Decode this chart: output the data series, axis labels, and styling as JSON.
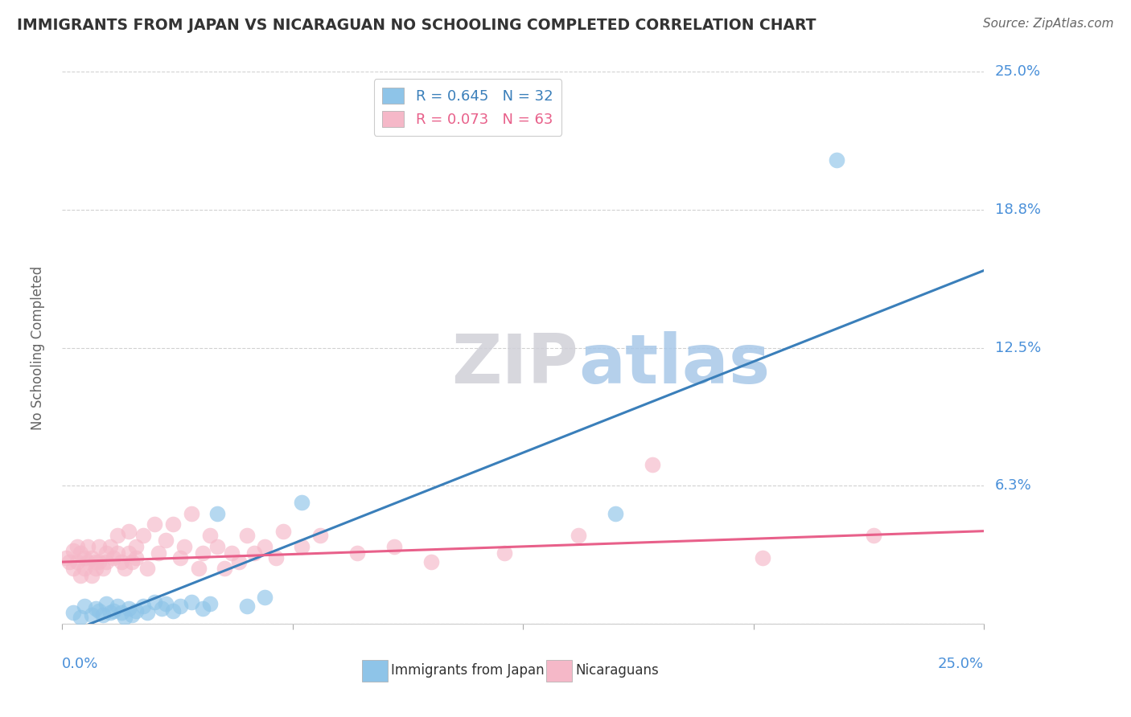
{
  "title": "IMMIGRANTS FROM JAPAN VS NICARAGUAN NO SCHOOLING COMPLETED CORRELATION CHART",
  "source": "Source: ZipAtlas.com",
  "ylabel": "No Schooling Completed",
  "watermark_zip": "ZIP",
  "watermark_atlas": "atlas",
  "xlim": [
    0.0,
    0.25
  ],
  "ylim": [
    0.0,
    0.25
  ],
  "yticks": [
    0.0,
    0.0625,
    0.125,
    0.1875,
    0.25
  ],
  "ytick_labels": [
    "",
    "6.3%",
    "12.5%",
    "18.8%",
    "25.0%"
  ],
  "legend_R_japan": "R = 0.645",
  "legend_N_japan": "N = 32",
  "legend_R_nicaragua": "R = 0.073",
  "legend_N_nicaragua": "N = 63",
  "legend_label_japan": "Immigrants from Japan",
  "legend_label_nicaragua": "Nicaraguans",
  "color_japan": "#8ec4e8",
  "color_nicaragua": "#f5b8c8",
  "color_japan_line": "#3a7fba",
  "color_nicaragua_line": "#e8608a",
  "japan_points_x": [
    0.003,
    0.005,
    0.006,
    0.008,
    0.009,
    0.01,
    0.011,
    0.012,
    0.013,
    0.014,
    0.015,
    0.016,
    0.017,
    0.018,
    0.019,
    0.02,
    0.022,
    0.023,
    0.025,
    0.027,
    0.028,
    0.03,
    0.032,
    0.035,
    0.038,
    0.04,
    0.042,
    0.05,
    0.055,
    0.065,
    0.15,
    0.21
  ],
  "japan_points_y": [
    0.005,
    0.003,
    0.008,
    0.004,
    0.007,
    0.006,
    0.004,
    0.009,
    0.005,
    0.006,
    0.008,
    0.005,
    0.003,
    0.007,
    0.004,
    0.006,
    0.008,
    0.005,
    0.01,
    0.007,
    0.009,
    0.006,
    0.008,
    0.01,
    0.007,
    0.009,
    0.05,
    0.008,
    0.012,
    0.055,
    0.05,
    0.21
  ],
  "nicaragua_points_x": [
    0.001,
    0.002,
    0.003,
    0.003,
    0.004,
    0.004,
    0.005,
    0.005,
    0.006,
    0.006,
    0.007,
    0.007,
    0.008,
    0.008,
    0.009,
    0.009,
    0.01,
    0.01,
    0.011,
    0.012,
    0.012,
    0.013,
    0.014,
    0.015,
    0.015,
    0.016,
    0.017,
    0.018,
    0.018,
    0.019,
    0.02,
    0.02,
    0.022,
    0.023,
    0.025,
    0.026,
    0.028,
    0.03,
    0.032,
    0.033,
    0.035,
    0.037,
    0.038,
    0.04,
    0.042,
    0.044,
    0.046,
    0.048,
    0.05,
    0.052,
    0.055,
    0.058,
    0.06,
    0.065,
    0.07,
    0.08,
    0.09,
    0.1,
    0.12,
    0.14,
    0.16,
    0.19,
    0.22
  ],
  "nicaragua_points_y": [
    0.03,
    0.028,
    0.033,
    0.025,
    0.035,
    0.028,
    0.022,
    0.032,
    0.025,
    0.03,
    0.028,
    0.035,
    0.022,
    0.03,
    0.028,
    0.025,
    0.035,
    0.028,
    0.025,
    0.032,
    0.028,
    0.035,
    0.03,
    0.04,
    0.032,
    0.028,
    0.025,
    0.042,
    0.032,
    0.028,
    0.035,
    0.03,
    0.04,
    0.025,
    0.045,
    0.032,
    0.038,
    0.045,
    0.03,
    0.035,
    0.05,
    0.025,
    0.032,
    0.04,
    0.035,
    0.025,
    0.032,
    0.028,
    0.04,
    0.032,
    0.035,
    0.03,
    0.042,
    0.035,
    0.04,
    0.032,
    0.035,
    0.028,
    0.032,
    0.04,
    0.072,
    0.03,
    0.04
  ],
  "japan_trend_x": [
    0.0,
    0.25
  ],
  "japan_trend_y": [
    -0.005,
    0.16
  ],
  "nicaragua_trend_x": [
    0.0,
    0.25
  ],
  "nicaragua_trend_y": [
    0.028,
    0.042
  ],
  "background_color": "#ffffff",
  "grid_color": "#cccccc",
  "title_color": "#333333",
  "tick_label_color": "#4a90d9"
}
